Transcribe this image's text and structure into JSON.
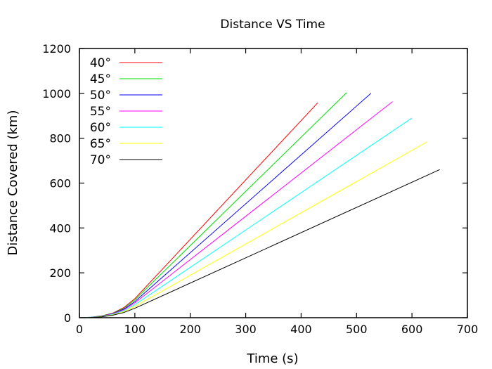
{
  "chart_data": {
    "type": "line",
    "title": "Distance VS Time",
    "xlabel": "Time (s)",
    "ylabel": "Distance Covered (km)",
    "xlim": [
      0,
      700
    ],
    "ylim": [
      0,
      1200
    ],
    "xticks": [
      0,
      100,
      200,
      300,
      400,
      500,
      600,
      700
    ],
    "yticks": [
      0,
      200,
      400,
      600,
      800,
      1000,
      1200
    ],
    "grid": false,
    "legend_position": "top-left",
    "series": [
      {
        "name": "40°",
        "color": "#ff0000",
        "points": [
          [
            0,
            0
          ],
          [
            20,
            2
          ],
          [
            40,
            8
          ],
          [
            60,
            20
          ],
          [
            80,
            45
          ],
          [
            100,
            85
          ],
          [
            430,
            958
          ]
        ]
      },
      {
        "name": "45°",
        "color": "#00dd00",
        "points": [
          [
            0,
            0
          ],
          [
            20,
            2
          ],
          [
            40,
            8
          ],
          [
            60,
            19
          ],
          [
            80,
            42
          ],
          [
            100,
            80
          ],
          [
            482,
            1003
          ]
        ]
      },
      {
        "name": "50°",
        "color": "#0000ee",
        "points": [
          [
            0,
            0
          ],
          [
            20,
            2
          ],
          [
            40,
            7
          ],
          [
            60,
            18
          ],
          [
            80,
            38
          ],
          [
            100,
            72
          ],
          [
            526,
            1000
          ]
        ]
      },
      {
        "name": "55°",
        "color": "#ff00ff",
        "points": [
          [
            0,
            0
          ],
          [
            20,
            2
          ],
          [
            40,
            7
          ],
          [
            60,
            17
          ],
          [
            80,
            35
          ],
          [
            100,
            66
          ],
          [
            565,
            963
          ]
        ]
      },
      {
        "name": "60°",
        "color": "#00ffff",
        "points": [
          [
            0,
            0
          ],
          [
            20,
            2
          ],
          [
            40,
            6
          ],
          [
            60,
            15
          ],
          [
            80,
            31
          ],
          [
            100,
            58
          ],
          [
            600,
            890
          ]
        ]
      },
      {
        "name": "65°",
        "color": "#ffff00",
        "points": [
          [
            0,
            0
          ],
          [
            20,
            1
          ],
          [
            40,
            5
          ],
          [
            60,
            13
          ],
          [
            80,
            27
          ],
          [
            100,
            50
          ],
          [
            628,
            785
          ]
        ]
      },
      {
        "name": "70°",
        "color": "#000000",
        "points": [
          [
            0,
            0
          ],
          [
            20,
            1
          ],
          [
            40,
            4
          ],
          [
            60,
            11
          ],
          [
            80,
            23
          ],
          [
            100,
            42
          ],
          [
            650,
            660
          ]
        ]
      }
    ]
  }
}
